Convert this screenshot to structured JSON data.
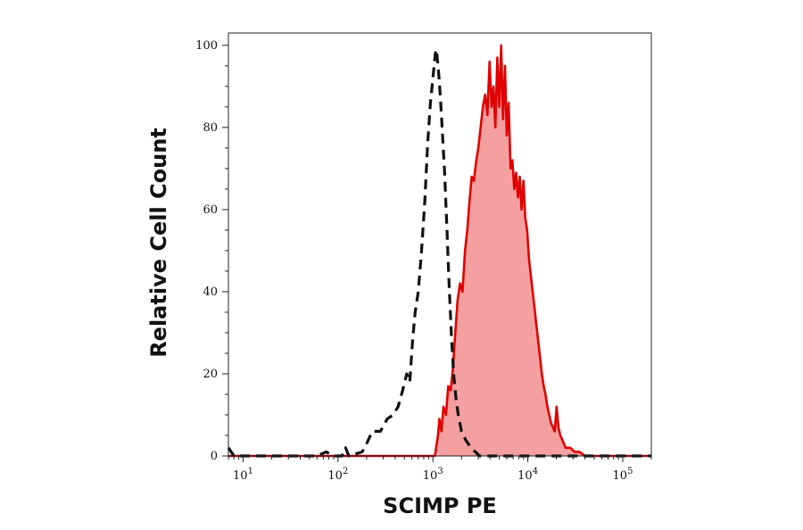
{
  "chart_data": {
    "type": "area",
    "title": "",
    "xlabel": "SCIMP PE",
    "ylabel": "Relative Cell Count",
    "x_scale": "log",
    "xlim": [
      7,
      200000
    ],
    "ylim": [
      0,
      103
    ],
    "grid": false,
    "legend": "none",
    "x_ticks": [
      {
        "value": 10,
        "base": "10",
        "exp": "1"
      },
      {
        "value": 100,
        "base": "10",
        "exp": "2"
      },
      {
        "value": 1000,
        "base": "10",
        "exp": "3"
      },
      {
        "value": 10000,
        "base": "10",
        "exp": "4"
      },
      {
        "value": 100000,
        "base": "10",
        "exp": "5"
      }
    ],
    "y_ticks": [
      {
        "value": 0,
        "label": "0"
      },
      {
        "value": 20,
        "label": "20"
      },
      {
        "value": 40,
        "label": "40"
      },
      {
        "value": 60,
        "label": "60"
      },
      {
        "value": 80,
        "label": "80"
      },
      {
        "value": 100,
        "label": "100"
      }
    ],
    "series": [
      {
        "style": "dashed",
        "color": "#111111",
        "fill": "none",
        "points": [
          [
            7,
            2
          ],
          [
            8,
            0
          ],
          [
            60,
            0
          ],
          [
            75,
            1
          ],
          [
            90,
            0
          ],
          [
            110,
            0
          ],
          [
            120,
            2
          ],
          [
            130,
            0
          ],
          [
            180,
            1
          ],
          [
            200,
            3
          ],
          [
            230,
            6
          ],
          [
            280,
            6
          ],
          [
            330,
            9
          ],
          [
            380,
            10
          ],
          [
            430,
            12
          ],
          [
            480,
            16
          ],
          [
            530,
            20
          ],
          [
            570,
            18
          ],
          [
            610,
            28
          ],
          [
            650,
            35
          ],
          [
            700,
            40
          ],
          [
            760,
            50
          ],
          [
            820,
            62
          ],
          [
            880,
            76
          ],
          [
            940,
            86
          ],
          [
            980,
            90
          ],
          [
            1020,
            94
          ],
          [
            1060,
            98
          ],
          [
            1090,
            99
          ],
          [
            1120,
            96
          ],
          [
            1160,
            92
          ],
          [
            1200,
            87
          ],
          [
            1250,
            80
          ],
          [
            1320,
            70
          ],
          [
            1400,
            56
          ],
          [
            1480,
            42
          ],
          [
            1560,
            30
          ],
          [
            1650,
            20
          ],
          [
            1750,
            14
          ],
          [
            1850,
            10
          ],
          [
            2000,
            6
          ],
          [
            2200,
            4
          ],
          [
            2500,
            2
          ],
          [
            2800,
            1
          ],
          [
            3100,
            0
          ],
          [
            200000,
            0
          ]
        ]
      },
      {
        "style": "solid",
        "color": "#e00000",
        "fill": "#f5a0a0",
        "points": [
          [
            7,
            0
          ],
          [
            1050,
            0
          ],
          [
            1080,
            2
          ],
          [
            1130,
            5
          ],
          [
            1170,
            9
          ],
          [
            1230,
            6
          ],
          [
            1290,
            12
          ],
          [
            1370,
            10
          ],
          [
            1450,
            17
          ],
          [
            1540,
            16
          ],
          [
            1620,
            21
          ],
          [
            1720,
            30
          ],
          [
            1820,
            38
          ],
          [
            1930,
            42
          ],
          [
            2050,
            40
          ],
          [
            2180,
            50
          ],
          [
            2300,
            55
          ],
          [
            2430,
            62
          ],
          [
            2560,
            68
          ],
          [
            2700,
            67
          ],
          [
            2860,
            72
          ],
          [
            3010,
            75
          ],
          [
            3180,
            80
          ],
          [
            3360,
            85
          ],
          [
            3550,
            88
          ],
          [
            3750,
            83
          ],
          [
            3950,
            96
          ],
          [
            4150,
            85
          ],
          [
            4350,
            90
          ],
          [
            4550,
            80
          ],
          [
            4770,
            97
          ],
          [
            5000,
            85
          ],
          [
            5230,
            100
          ],
          [
            5480,
            82
          ],
          [
            5740,
            95
          ],
          [
            6000,
            78
          ],
          [
            6280,
            86
          ],
          [
            6570,
            70
          ],
          [
            6870,
            72
          ],
          [
            7190,
            65
          ],
          [
            7520,
            69
          ],
          [
            7860,
            63
          ],
          [
            8220,
            68
          ],
          [
            8590,
            60
          ],
          [
            8990,
            67
          ],
          [
            9400,
            58
          ],
          [
            9830,
            55
          ],
          [
            10280,
            48
          ],
          [
            10750,
            44
          ],
          [
            11240,
            40
          ],
          [
            11750,
            36
          ],
          [
            12290,
            32
          ],
          [
            12850,
            28
          ],
          [
            13440,
            24
          ],
          [
            14050,
            20
          ],
          [
            14690,
            17
          ],
          [
            15360,
            15
          ],
          [
            16070,
            12
          ],
          [
            16800,
            10
          ],
          [
            17570,
            8
          ],
          [
            18370,
            7
          ],
          [
            19210,
            6
          ],
          [
            20090,
            12
          ],
          [
            21000,
            7
          ],
          [
            22000,
            5
          ],
          [
            23000,
            4
          ],
          [
            25000,
            2
          ],
          [
            28000,
            2
          ],
          [
            31000,
            1
          ],
          [
            35000,
            1
          ],
          [
            40000,
            0
          ],
          [
            200000,
            0
          ]
        ]
      }
    ]
  }
}
